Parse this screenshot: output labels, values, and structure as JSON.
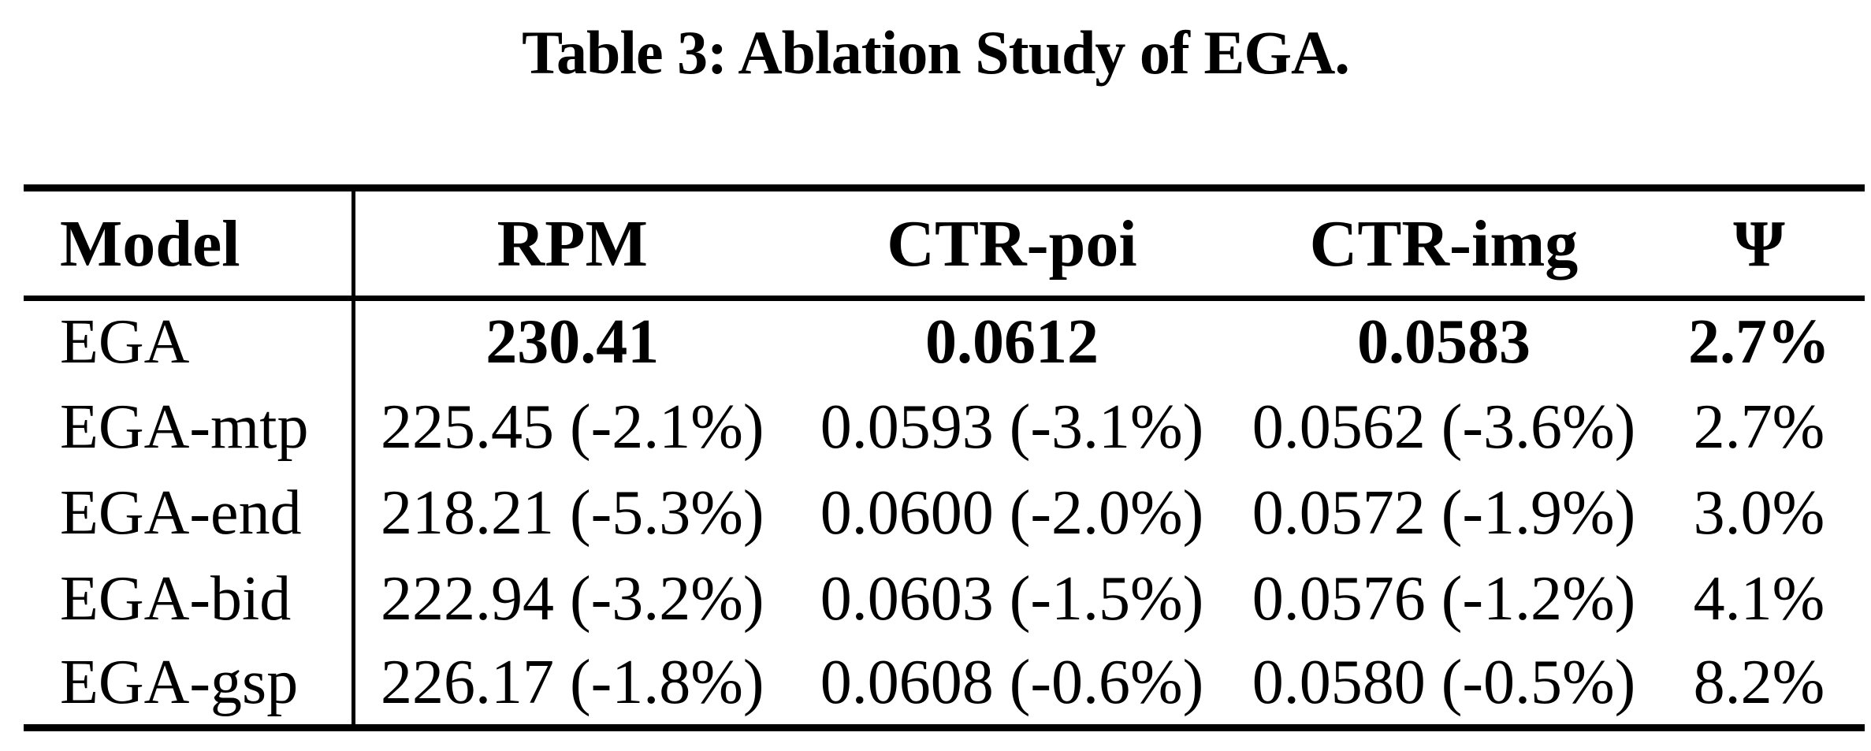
{
  "title": "Table 3: Ablation Study of EGA.",
  "table": {
    "columns": [
      "Model",
      "RPM",
      "CTR-poi",
      "CTR-img",
      "Ψ"
    ],
    "rows": [
      {
        "model": "EGA",
        "rpm": "230.41",
        "ctr_poi": "0.0612",
        "ctr_img": "0.0583",
        "psi": "2.7%"
      },
      {
        "model": "EGA-mtp",
        "rpm": "225.45 (-2.1%)",
        "ctr_poi": "0.0593 (-3.1%)",
        "ctr_img": "0.0562 (-3.6%)",
        "psi": "2.7%"
      },
      {
        "model": "EGA-end",
        "rpm": "218.21 (-5.3%)",
        "ctr_poi": "0.0600 (-2.0%)",
        "ctr_img": "0.0572 (-1.9%)",
        "psi": "3.0%"
      },
      {
        "model": "EGA-bid",
        "rpm": "222.94 (-3.2%)",
        "ctr_poi": "0.0603 (-1.5%)",
        "ctr_img": "0.0576 (-1.2%)",
        "psi": "4.1%"
      },
      {
        "model": "EGA-gsp",
        "rpm": "226.17 (-1.8%)",
        "ctr_poi": "0.0608 (-0.6%)",
        "ctr_img": "0.0580 (-0.5%)",
        "psi": "8.2%"
      }
    ]
  }
}
